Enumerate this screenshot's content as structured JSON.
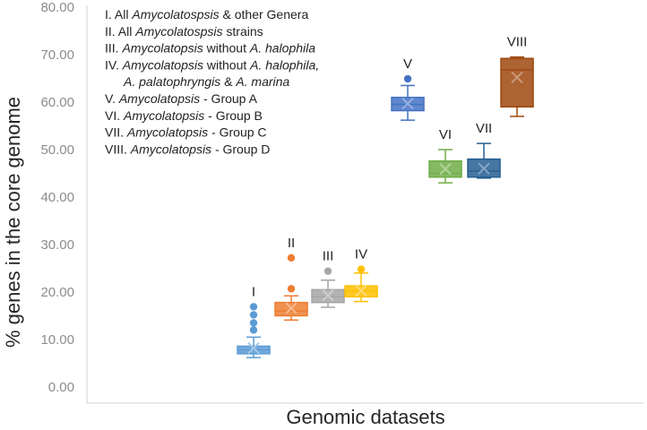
{
  "chart_data": {
    "type": "boxplot",
    "title": "",
    "xlabel": "Genomic datasets",
    "ylabel": "% genes in the core genome",
    "ylim": [
      0,
      80
    ],
    "yticks": [
      "0.00",
      "10.00",
      "20.00",
      "30.00",
      "40.00",
      "50.00",
      "60.00",
      "70.00",
      "80.00"
    ],
    "grid": false,
    "legend": {
      "placement": "top-left",
      "lines": [
        [
          {
            "t": "I. All ",
            "i": false
          },
          {
            "t": "Amycolatospsis",
            "i": true
          },
          {
            "t": " & other Genera",
            "i": false
          }
        ],
        [
          {
            "t": "II. All ",
            "i": false
          },
          {
            "t": "Amycolatospsis",
            "i": true
          },
          {
            "t": " strains",
            "i": false
          }
        ],
        [
          {
            "t": "III. ",
            "i": false
          },
          {
            "t": "Amycolatopsis",
            "i": true
          },
          {
            "t": " without ",
            "i": false
          },
          {
            "t": "A. halophila",
            "i": true
          }
        ],
        [
          {
            "t": "IV. ",
            "i": false
          },
          {
            "t": "Amycolatopsis",
            "i": true
          },
          {
            "t": " without ",
            "i": false
          },
          {
            "t": "A. halophila,",
            "i": true
          }
        ],
        [
          {
            "t": "A. palatophryngis",
            "i": true
          },
          {
            "t": " & ",
            "i": false
          },
          {
            "t": "A. marina",
            "i": true
          }
        ],
        [
          {
            "t": "V. ",
            "i": false
          },
          {
            "t": "Amycolatopsis",
            "i": true
          },
          {
            "t": " - Group A",
            "i": false
          }
        ],
        [
          {
            "t": "VI. ",
            "i": false
          },
          {
            "t": "Amycolatopsis",
            "i": true
          },
          {
            "t": " - Group B",
            "i": false
          }
        ],
        [
          {
            "t": "VII. ",
            "i": false
          },
          {
            "t": "Amycolatopsis",
            "i": true
          },
          {
            "t": " - Group C",
            "i": false
          }
        ],
        [
          {
            "t": "VIII. ",
            "i": false
          },
          {
            "t": "Amycolatopsis",
            "i": true
          },
          {
            "t": " - Group D",
            "i": false
          }
        ]
      ]
    },
    "series": [
      {
        "label": "I",
        "color": "#5b9bd5",
        "min": 6.2,
        "q1": 7.0,
        "median": 7.8,
        "q3": 8.6,
        "max": 10.5,
        "mean": 8.2,
        "outliers": [
          12.0,
          13.5,
          15.2,
          16.9
        ]
      },
      {
        "label": "II",
        "color": "#ed7d31",
        "min": 14.1,
        "q1": 15.0,
        "median": 16.0,
        "q3": 17.8,
        "max": 19.2,
        "mean": 16.6,
        "outliers": [
          20.7,
          27.2
        ]
      },
      {
        "label": "III",
        "color": "#a5a5a5",
        "min": 16.8,
        "q1": 17.8,
        "median": 19.0,
        "q3": 20.5,
        "max": 22.5,
        "mean": 19.3,
        "outliers": [
          24.4
        ]
      },
      {
        "label": "IV",
        "color": "#ffc000",
        "min": 18.0,
        "q1": 19.0,
        "median": 20.2,
        "q3": 21.3,
        "max": 24.0,
        "mean": 20.3,
        "outliers": [
          24.8
        ]
      },
      {
        "label": "V",
        "color": "#4472c4",
        "min": 56.2,
        "q1": 58.2,
        "median": 59.5,
        "q3": 61.0,
        "max": 63.5,
        "mean": 59.7,
        "outliers": [
          64.9
        ]
      },
      {
        "label": "VI",
        "color": "#70ad47",
        "min": 43.0,
        "q1": 44.2,
        "median": 45.0,
        "q3": 47.6,
        "max": 50.0,
        "mean": 45.9,
        "outliers": []
      },
      {
        "label": "VII",
        "color": "#255e91",
        "min": 44.0,
        "q1": 44.2,
        "median": 45.5,
        "q3": 48.0,
        "max": 51.3,
        "mean": 46.0,
        "outliers": []
      },
      {
        "label": "VIII",
        "color": "#9e480e",
        "min": 57.0,
        "q1": 59.0,
        "median": 66.8,
        "q3": 69.2,
        "max": 69.5,
        "mean": 65.2,
        "outliers": []
      }
    ]
  }
}
